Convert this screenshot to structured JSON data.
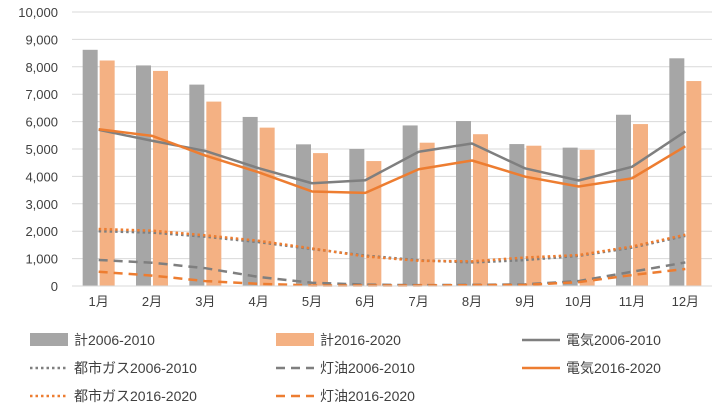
{
  "chart_data": {
    "type": "bar",
    "categories": [
      "1月",
      "2月",
      "3月",
      "4月",
      "5月",
      "6月",
      "7月",
      "8月",
      "9月",
      "10月",
      "11月",
      "12月"
    ],
    "ylim": [
      0,
      10000
    ],
    "yticks": [
      "0",
      "1,000",
      "2,000",
      "3,000",
      "4,000",
      "5,000",
      "6,000",
      "7,000",
      "8,000",
      "9,000",
      "10,000"
    ],
    "gridlines": true,
    "legend_position": "bottom",
    "series": [
      {
        "name": "計2006-2010",
        "kind": "bar",
        "color": "#a6a6a6",
        "values": [
          8620,
          8050,
          7350,
          6170,
          5170,
          5000,
          5860,
          6020,
          5180,
          5050,
          6250,
          8310
        ]
      },
      {
        "name": "計2016-2020",
        "kind": "bar",
        "color": "#f4b183",
        "values": [
          8230,
          7850,
          6730,
          5780,
          4850,
          4560,
          5230,
          5540,
          5120,
          4970,
          5910,
          7480
        ]
      },
      {
        "name": "電気2006-2010",
        "kind": "line",
        "style": "solid",
        "color": "#7f7f7f",
        "values": [
          5700,
          5300,
          4930,
          4300,
          3750,
          3860,
          4900,
          5200,
          4290,
          3850,
          4350,
          5640
        ]
      },
      {
        "name": "都市ガス2006-2010",
        "kind": "line",
        "style": "dotted",
        "color": "#7f7f7f",
        "values": [
          2000,
          1950,
          1800,
          1600,
          1350,
          1110,
          940,
          860,
          950,
          1100,
          1400,
          1830
        ]
      },
      {
        "name": "灯油2006-2010",
        "kind": "line",
        "style": "dashed",
        "color": "#7f7f7f",
        "values": [
          950,
          850,
          650,
          330,
          120,
          50,
          30,
          40,
          60,
          180,
          520,
          860
        ]
      },
      {
        "name": "電気2016-2020",
        "kind": "line",
        "style": "solid",
        "color": "#ed7d31",
        "values": [
          5720,
          5480,
          4760,
          4150,
          3450,
          3400,
          4260,
          4580,
          3990,
          3630,
          3930,
          5100
        ]
      },
      {
        "name": "都市ガス2016-2020",
        "kind": "line",
        "style": "dotted",
        "color": "#ed7d31",
        "values": [
          2080,
          2020,
          1850,
          1650,
          1370,
          1080,
          920,
          900,
          1040,
          1130,
          1440,
          1870
        ]
      },
      {
        "name": "灯油2016-2020",
        "kind": "line",
        "style": "dashed",
        "color": "#ed7d31",
        "values": [
          520,
          380,
          180,
          80,
          20,
          20,
          20,
          30,
          40,
          140,
          400,
          620
        ]
      }
    ]
  }
}
